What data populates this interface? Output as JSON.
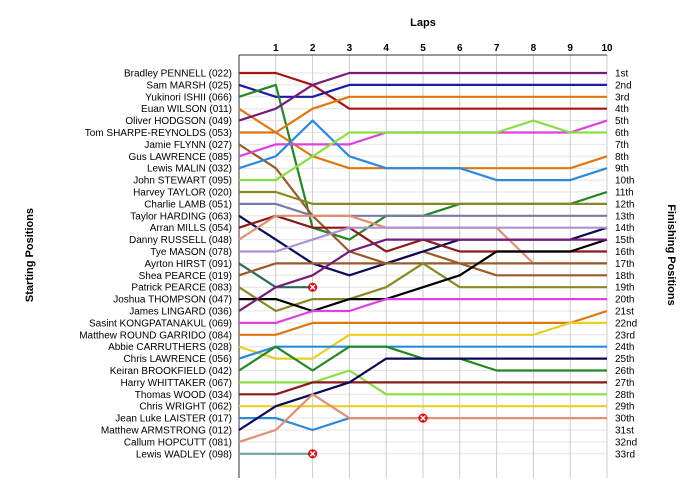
{
  "chart_data": {
    "type": "line",
    "title": "",
    "x_axis_title": "Laps",
    "y_left_title": "Starting Positions",
    "y_right_title": "Finishing Positions",
    "laps": [
      1,
      2,
      3,
      4,
      5,
      6,
      7,
      8,
      9,
      10
    ],
    "finishing_positions": [
      "1st",
      "2nd",
      "3rd",
      "4th",
      "5th",
      "6th",
      "7th",
      "8th",
      "9th",
      "10th",
      "11th",
      "12th",
      "13th",
      "14th",
      "15th",
      "16th",
      "17th",
      "18th",
      "19th",
      "20th",
      "21st",
      "22nd",
      "23rd",
      "24th",
      "25th",
      "26th",
      "27th",
      "28th",
      "29th",
      "30th",
      "31st",
      "32nd",
      "33rd"
    ],
    "y_range": [
      1,
      33
    ],
    "x_range": [
      0,
      10
    ],
    "grid": true,
    "retirement_marker": "x",
    "series": [
      {
        "name": "Bradley PENNELL (022)",
        "color": "#aa1111",
        "positions": [
          1,
          1,
          2,
          4,
          4,
          4,
          4,
          4,
          4,
          4,
          4
        ]
      },
      {
        "name": "Sam MARSH (025)",
        "color": "#1a1aaa",
        "positions": [
          2,
          3,
          3,
          2,
          2,
          2,
          2,
          2,
          2,
          2,
          2
        ]
      },
      {
        "name": "Yukinori ISHII (066)",
        "color": "#228822",
        "positions": [
          3,
          2,
          14,
          15,
          13,
          13,
          12,
          12,
          12,
          12,
          11
        ]
      },
      {
        "name": "Euan WILSON (011)",
        "color": "#e07810",
        "positions": [
          4,
          6,
          4,
          3,
          3,
          3,
          3,
          3,
          3,
          3,
          3
        ]
      },
      {
        "name": "Oliver HODGSON (049)",
        "color": "#7a1a7a",
        "positions": [
          5,
          4,
          2,
          1,
          1,
          1,
          1,
          1,
          1,
          1,
          1
        ]
      },
      {
        "name": "Tom SHARPE-REYNOLDS (053)",
        "color": "#e07810",
        "positions": [
          6,
          6,
          8,
          9,
          9,
          9,
          9,
          9,
          9,
          9,
          8
        ]
      },
      {
        "name": "Jamie FLYNN (027)",
        "color": "#9a5a2a",
        "positions": [
          7,
          9,
          13,
          16,
          17,
          16,
          17,
          18,
          18,
          18,
          18
        ]
      },
      {
        "name": "Gus LAWRENCE (085)",
        "color": "#e040e0",
        "positions": [
          8,
          7,
          7,
          7,
          6,
          6,
          6,
          6,
          6,
          6,
          5
        ]
      },
      {
        "name": "Lewis MALIN (032)",
        "color": "#2a8ae0",
        "positions": [
          9,
          8,
          5,
          8,
          9,
          9,
          9,
          10,
          10,
          10,
          9
        ]
      },
      {
        "name": "John STEWART (095)",
        "color": "#88e040",
        "positions": [
          10,
          10,
          8,
          6,
          6,
          6,
          6,
          6,
          5,
          6,
          6
        ]
      },
      {
        "name": "Harvey TAYLOR (020)",
        "color": "#888822",
        "positions": [
          11,
          11,
          12,
          12,
          12,
          12,
          12,
          12,
          12,
          12,
          12
        ]
      },
      {
        "name": "Charlie LAMB (051)",
        "color": "#7a7aaa",
        "positions": [
          12,
          12,
          13,
          13,
          13,
          13,
          13,
          13,
          13,
          13,
          13
        ]
      },
      {
        "name": "Taylor HARDING (063)",
        "color": "#0a0a5a",
        "positions": [
          13,
          15,
          17,
          18,
          17,
          16,
          15,
          15,
          15,
          15,
          14
        ]
      },
      {
        "name": "Arran MILLS (054)",
        "color": "#8a1a1a",
        "positions": [
          14,
          13,
          14,
          14,
          16,
          15,
          16,
          16,
          16,
          16,
          16
        ]
      },
      {
        "name": "Danny RUSSELL (048)",
        "color": "#e09070",
        "positions": [
          15,
          13,
          13,
          13,
          14,
          14,
          14,
          14,
          17,
          17,
          17
        ]
      },
      {
        "name": "Tye MASON (078)",
        "color": "#b090d0",
        "positions": [
          16,
          16,
          15,
          14,
          14,
          14,
          14,
          14,
          14,
          14,
          14
        ]
      },
      {
        "name": "Ayrton HIRST (091)",
        "color": "#2a6a5a",
        "positions": [
          17,
          19,
          19
        ]
      },
      {
        "name": "Shea PEARCE (019)",
        "color": "#9a5a2a",
        "positions": [
          18,
          17,
          17,
          17,
          17,
          17,
          17,
          17,
          17,
          17,
          17
        ]
      },
      {
        "name": "Patrick PEARCE (083)",
        "color": "#888822",
        "positions": [
          19,
          21,
          20,
          20,
          19,
          17,
          19,
          19,
          19,
          19,
          19
        ]
      },
      {
        "name": "Joshua THOMPSON (047)",
        "color": "#000000",
        "positions": [
          20,
          20,
          21,
          20,
          20,
          19,
          18,
          16,
          16,
          16,
          15
        ]
      },
      {
        "name": "James LINGARD (036)",
        "color": "#7a1a7a",
        "positions": [
          21,
          19,
          18,
          16,
          15,
          15,
          15,
          15,
          15,
          15,
          15
        ]
      },
      {
        "name": "Sasint KONGPATANAKUL (069)",
        "color": "#e040e0",
        "positions": [
          22,
          22,
          21,
          21,
          20,
          20,
          20,
          20,
          20,
          20,
          20
        ]
      },
      {
        "name": "Matthew ROUND GARRIDO (084)",
        "color": "#e07810",
        "positions": [
          23,
          23,
          22,
          22,
          22,
          22,
          22,
          22,
          22,
          22,
          21
        ]
      },
      {
        "name": "Abbie CARRUTHERS (028)",
        "color": "#e8d020",
        "positions": [
          24,
          25,
          25,
          23,
          23,
          23,
          23,
          23,
          23,
          22,
          22
        ]
      },
      {
        "name": "Chris LAWRENCE (056)",
        "color": "#2a8ae0",
        "positions": [
          25,
          24,
          24,
          24,
          24,
          24,
          24,
          24,
          24,
          24,
          24
        ]
      },
      {
        "name": "Keiran BROOKFIELD (042)",
        "color": "#228822",
        "positions": [
          26,
          24,
          26,
          24,
          24,
          25,
          25,
          26,
          26,
          26,
          26
        ]
      },
      {
        "name": "Harry WHITTAKER (067)",
        "color": "#88e040",
        "positions": [
          27,
          27,
          27,
          26,
          28,
          28,
          28,
          28,
          28,
          28,
          28
        ]
      },
      {
        "name": "Thomas WOOD (034)",
        "color": "#8a1a1a",
        "positions": [
          28,
          28,
          27,
          27,
          27,
          27,
          27,
          27,
          27,
          27,
          27
        ]
      },
      {
        "name": "Chris WRIGHT (062)",
        "color": "#e8d020",
        "positions": [
          29,
          29,
          29,
          29,
          29,
          29,
          29,
          29,
          29,
          29,
          29
        ]
      },
      {
        "name": "Jean Luke LAISTER (017)",
        "color": "#2a8ae0",
        "positions": [
          30,
          30,
          31,
          30,
          30,
          30
        ]
      },
      {
        "name": "Matthew ARMSTRONG (012)",
        "color": "#0a0a5a",
        "positions": [
          31,
          29,
          28,
          27,
          25,
          25,
          25,
          25,
          25,
          25,
          25
        ]
      },
      {
        "name": "Callum HOPCUTT (081)",
        "color": "#e09070",
        "positions": [
          32,
          31,
          28,
          30,
          30,
          30,
          30,
          30,
          30,
          30,
          30
        ]
      },
      {
        "name": "Lewis WADLEY (098)",
        "color": "#6aa0a0",
        "positions": [
          33,
          33,
          33
        ]
      }
    ]
  }
}
